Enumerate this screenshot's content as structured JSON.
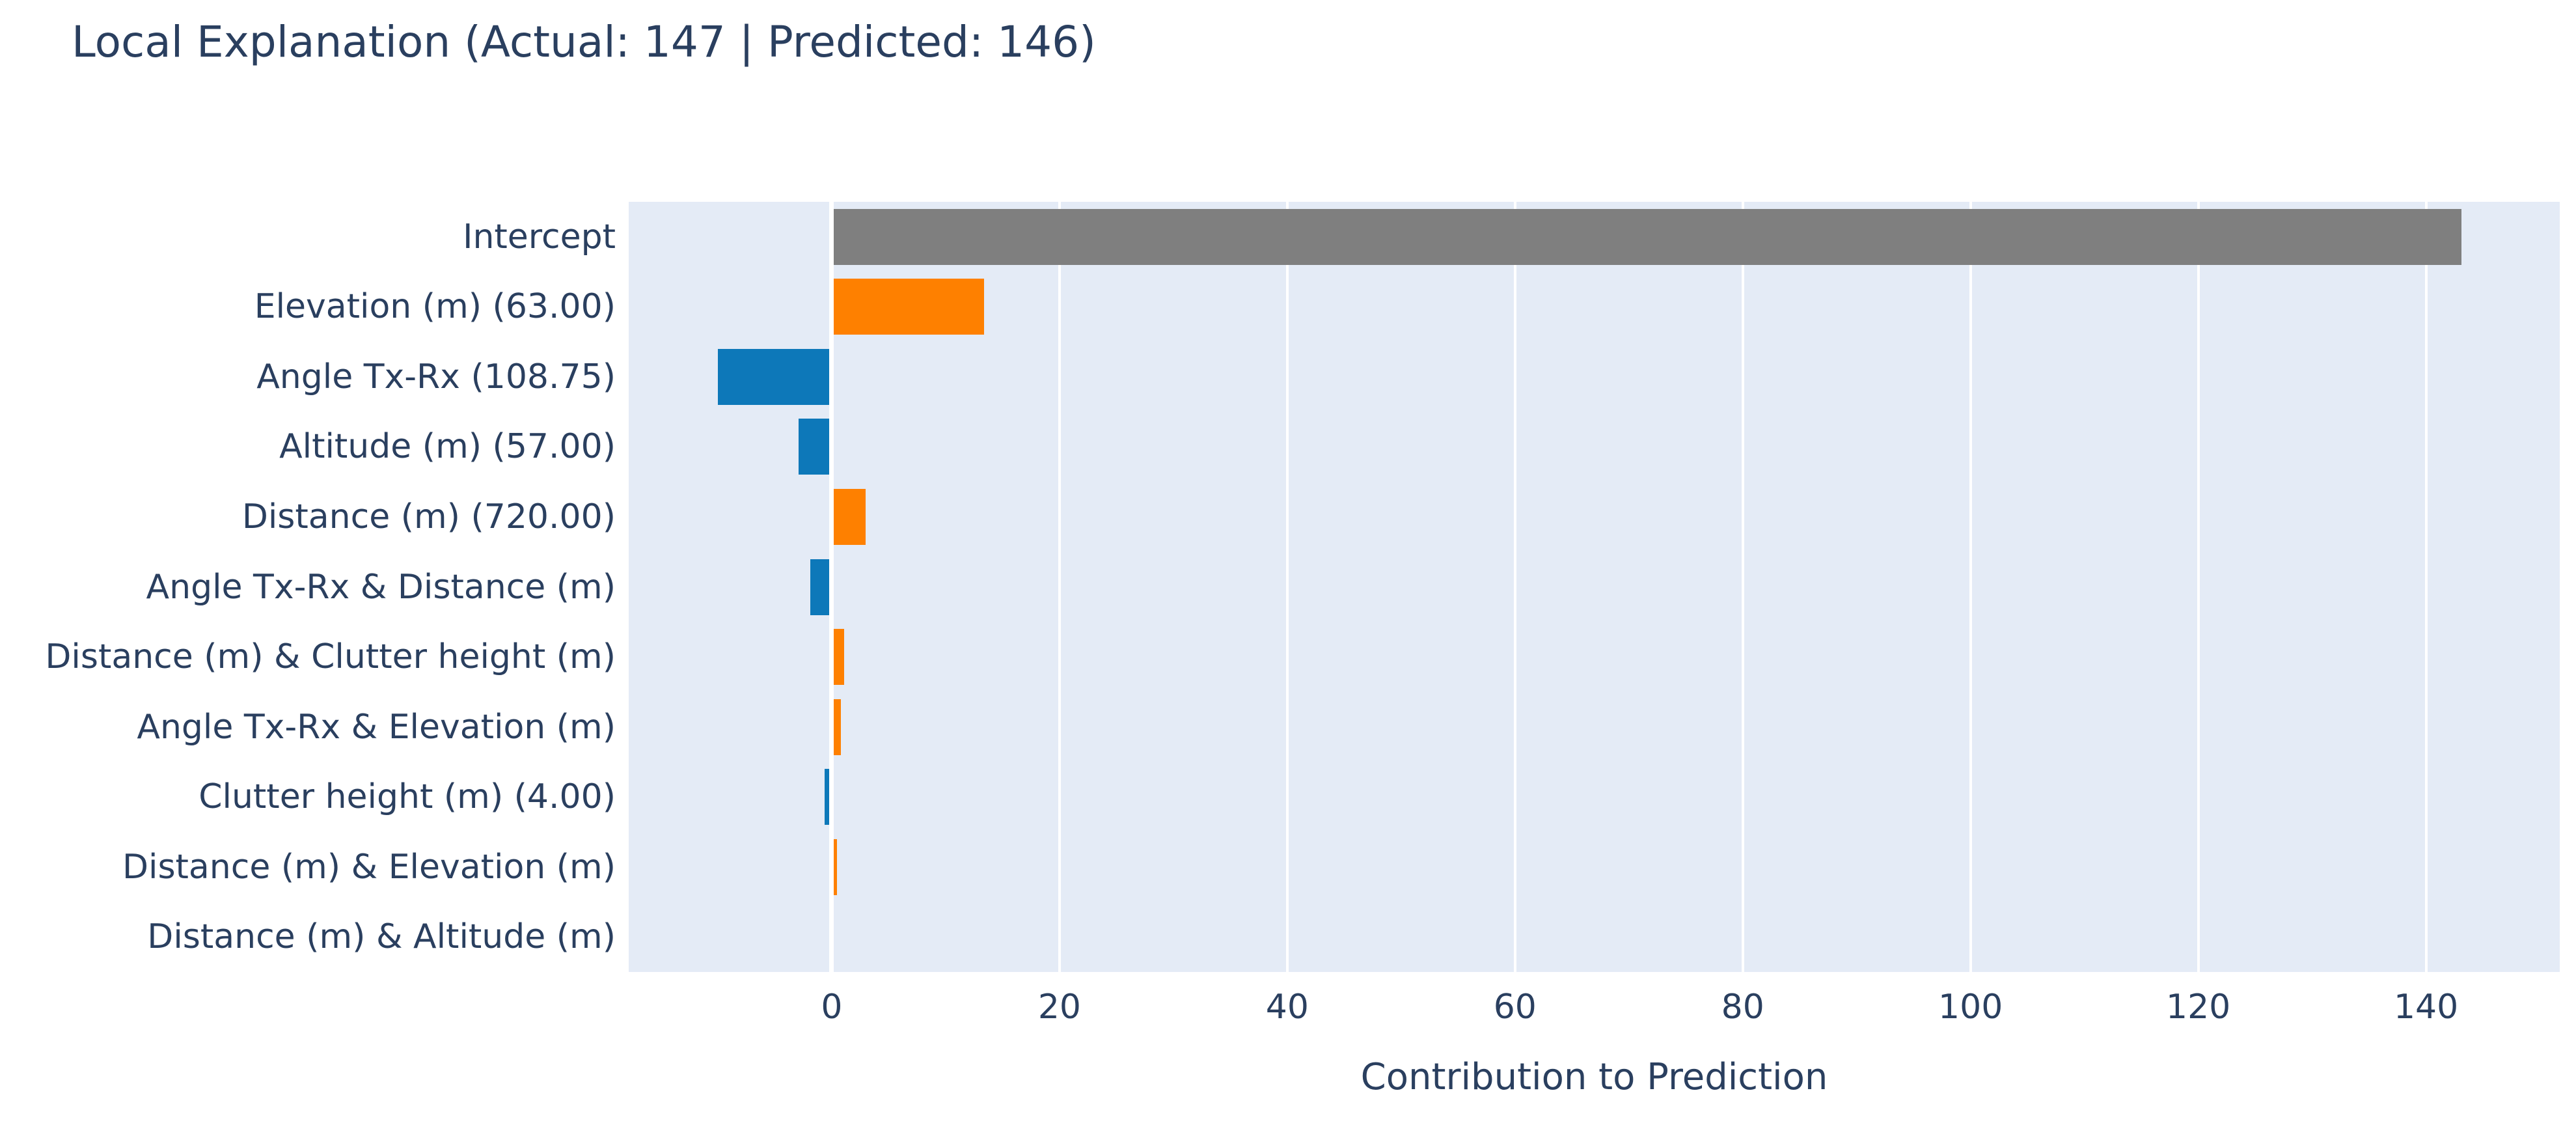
{
  "title": "Local Explanation (Actual: 147 | Predicted: 146)",
  "text_color": "#2a3f5f",
  "chart_data": {
    "type": "bar",
    "orientation": "horizontal",
    "title": "Local Explanation (Actual: 147 | Predicted: 146)",
    "xlabel": "Contribution to Prediction",
    "ylabel": "",
    "actual": 147,
    "predicted": 146,
    "grid": true,
    "plot_bgcolor": "#e4ebf6",
    "gridline_color": "#ffffff",
    "x_ticks": [
      0,
      20,
      40,
      60,
      80,
      100,
      120,
      140
    ],
    "x_range": [
      -17.83,
      151.74
    ],
    "categories": [
      "Intercept",
      "Elevation (m) (63.00)",
      "Angle Tx-Rx (108.75)",
      "Altitude (m) (57.00)",
      "Distance (m) (720.00)",
      "Angle Tx-Rx & Distance (m)",
      "Distance (m) & Clutter height (m)",
      "Angle Tx-Rx & Elevation (m)",
      "Clutter height (m) (4.00)",
      "Distance (m) & Elevation (m)",
      "Distance (m) & Altitude (m)"
    ],
    "values": [
      143.1,
      13.4,
      -10.0,
      -2.9,
      3.0,
      -1.9,
      1.1,
      0.8,
      -0.65,
      0.45,
      0.05
    ],
    "colors": [
      "#7f7f7f",
      "#fe8000",
      "#0d78b9",
      "#0d78b9",
      "#fe8000",
      "#0d78b9",
      "#fe8000",
      "#fe8000",
      "#0d78b9",
      "#fe8000",
      "#fe8000"
    ],
    "color_legend": {
      "intercept": "#7f7f7f",
      "positive_contribution": "#fe8000",
      "negative_contribution": "#0d78b9"
    },
    "legend_position": "none"
  }
}
